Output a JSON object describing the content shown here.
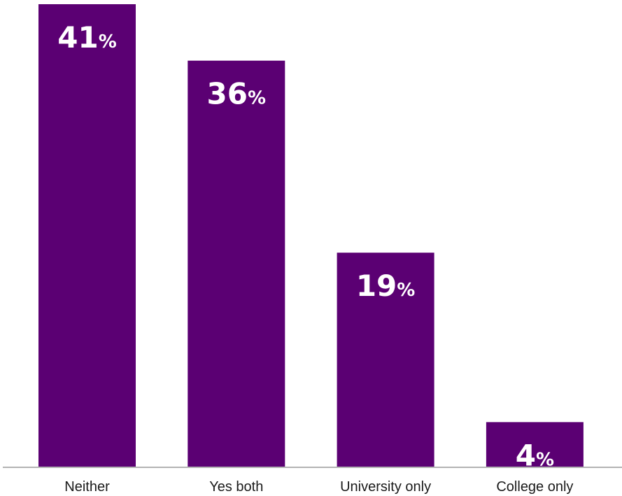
{
  "chart_data": {
    "type": "bar",
    "categories": [
      "Neither",
      "Yes both",
      "University only",
      "College only"
    ],
    "values": [
      41,
      36,
      19,
      4
    ],
    "value_suffix": "%",
    "ylim": [
      0,
      41
    ],
    "grid": false,
    "legend": "none",
    "bar_color": "#5b0073",
    "baseline_color": "#b3b3b3",
    "label_color": "#ffffff"
  }
}
